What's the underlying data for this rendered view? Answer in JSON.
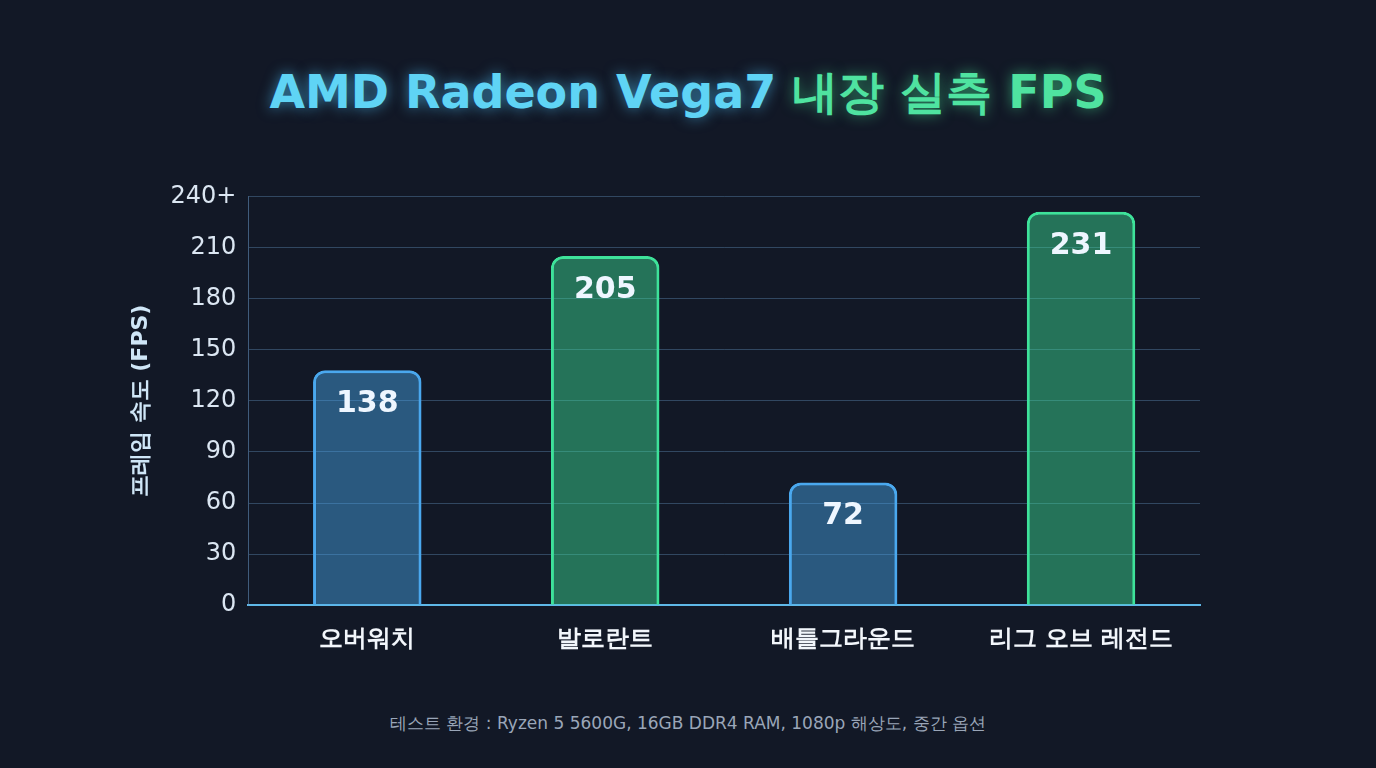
{
  "chart_data": {
    "type": "bar",
    "title": "AMD Radeon Vega7 내장 실측 FPS",
    "y_label": "프레임 속도 (FPS)",
    "categories": [
      "오버워치",
      "발로란트",
      "배틀그라운드",
      "리그 오브 레전드"
    ],
    "values": [
      138,
      205,
      72,
      231
    ],
    "colors": [
      "#4aa8ee",
      "#3ee29a",
      "#4aa8ee",
      "#3ee29a"
    ],
    "ylim": [
      0,
      240
    ],
    "yticks": [
      0,
      30,
      60,
      90,
      120,
      150,
      180,
      210,
      {
        "value": 240,
        "label": "240+"
      }
    ],
    "grid": true,
    "data_labels": true,
    "note": "테스트 환경 : Ryzen 5 5600G, 16GB DDR4 RAM, 1080p 해상도, 중간 옵션"
  }
}
